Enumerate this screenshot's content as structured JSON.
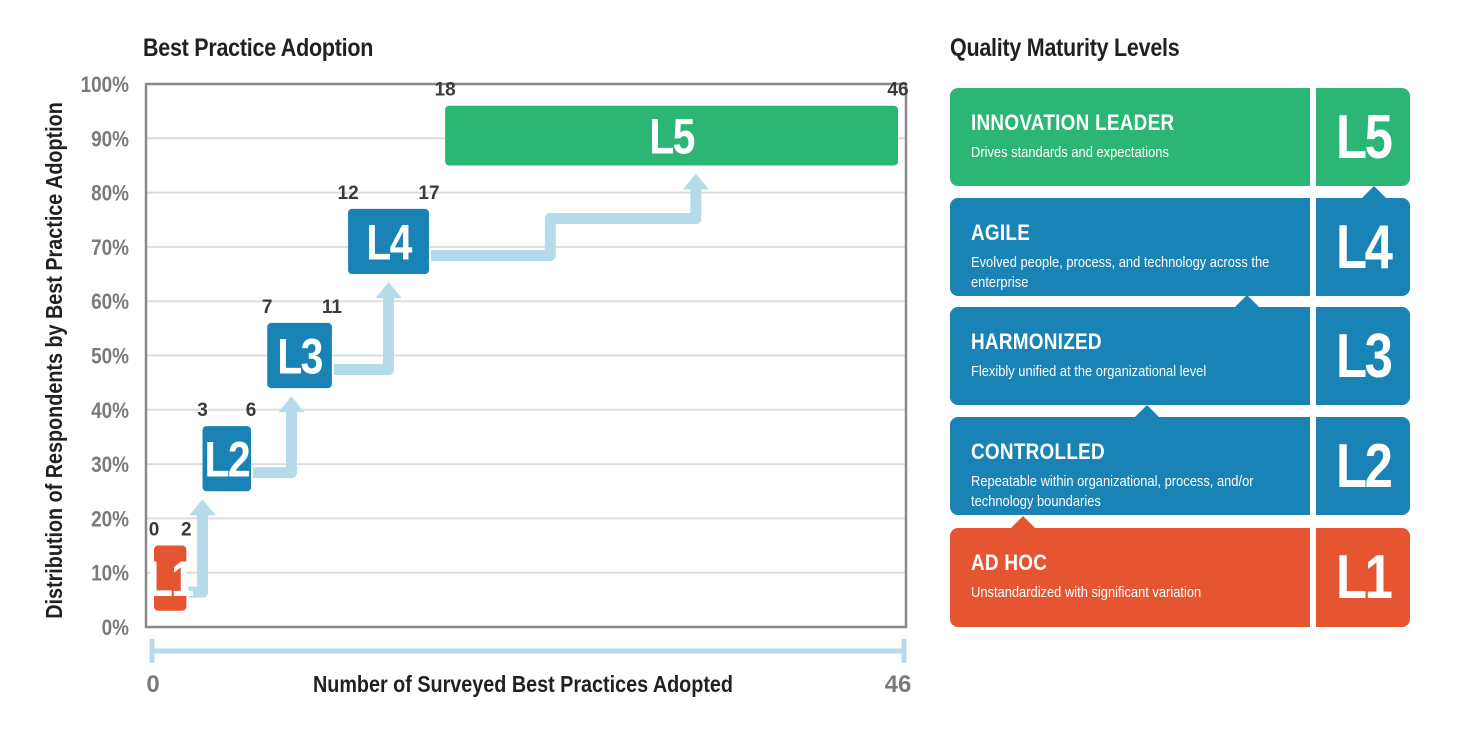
{
  "chart_data": {
    "type": "bar",
    "title": "Best Practice Adoption",
    "xlabel": "Number of Surveyed Best Practices Adopted",
    "ylabel": "Distribution of Respondents by Best Practice Adoption",
    "xlim": [
      0,
      46
    ],
    "ylim": [
      0,
      100
    ],
    "yticks": [
      "0%",
      "10%",
      "20%",
      "30%",
      "40%",
      "50%",
      "60%",
      "70%",
      "80%",
      "90%",
      "100%"
    ],
    "x_axis_labels": [
      "0",
      "46"
    ],
    "grid": true,
    "levels": [
      {
        "label": "L1",
        "x_start": 0,
        "x_end": 2,
        "y_low": 3,
        "y_high": 15,
        "color": "#e65532"
      },
      {
        "label": "L2",
        "x_start": 3,
        "x_end": 6,
        "y_low": 25,
        "y_high": 37,
        "color": "#1883b4"
      },
      {
        "label": "L3",
        "x_start": 7,
        "x_end": 11,
        "y_low": 44,
        "y_high": 56,
        "color": "#1883b4"
      },
      {
        "label": "L4",
        "x_start": 12,
        "x_end": 17,
        "y_low": 65,
        "y_high": 77,
        "color": "#1883b4"
      },
      {
        "label": "L5",
        "x_start": 18,
        "x_end": 46,
        "y_low": 85,
        "y_high": 96,
        "color": "#2bb673"
      }
    ]
  },
  "maturity": {
    "title": "Quality Maturity Levels",
    "levels": [
      {
        "code": "L5",
        "name": "INNOVATION LEADER",
        "desc": "Drives standards and expectations",
        "color": "#2bb673"
      },
      {
        "code": "L4",
        "name": "AGILE",
        "desc": "Evolved people, process, and technology across the enterprise",
        "color": "#1883b4"
      },
      {
        "code": "L3",
        "name": "HARMONIZED",
        "desc": "Flexibly unified at the organizational level",
        "color": "#1883b4"
      },
      {
        "code": "L2",
        "name": "CONTROLLED",
        "desc": "Repeatable within organizational, process, and/or technology boundaries",
        "color": "#1883b4"
      },
      {
        "code": "L1",
        "name": "AD HOC",
        "desc": "Unstandardized with significant variation",
        "color": "#e65532"
      }
    ]
  },
  "colors": {
    "arrow": "#b5dbeb",
    "grid": "#dddddd",
    "axis_text": "#7a7a7a",
    "frame": "#8a8a8a"
  }
}
